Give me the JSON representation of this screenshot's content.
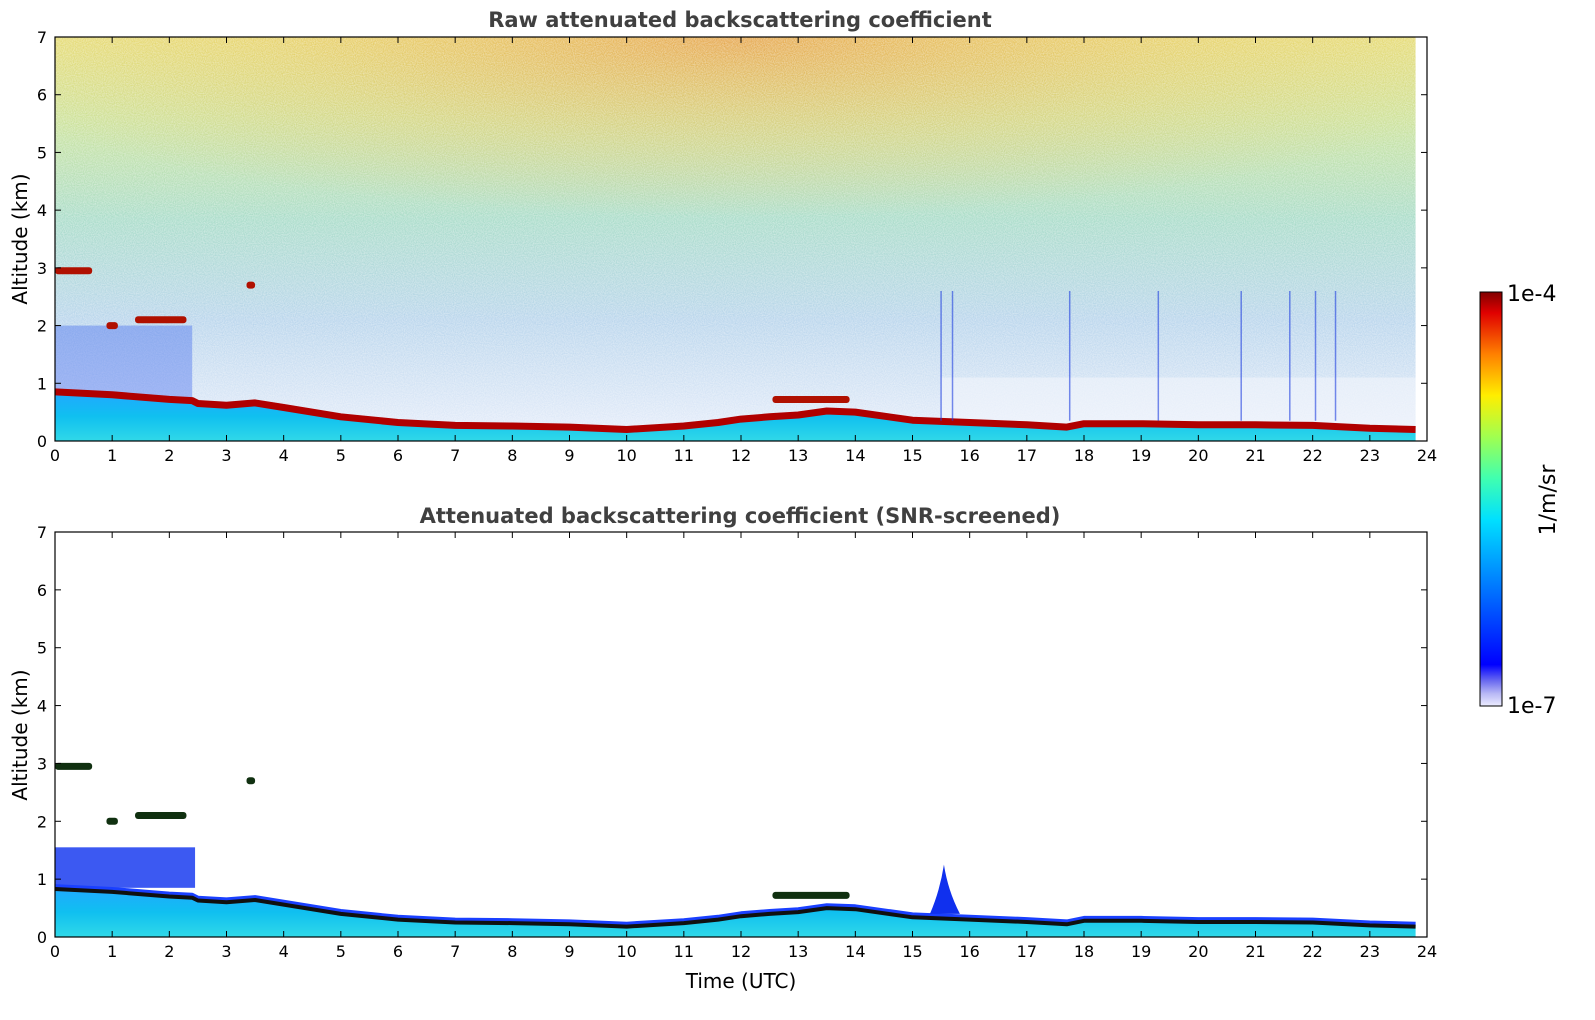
{
  "chart_data": [
    {
      "type": "heatmap",
      "title": "Raw attenuated backscattering coefficient",
      "xlabel": "",
      "ylabel": "Altitude (km)",
      "xlim": [
        0,
        24
      ],
      "ylim": [
        0,
        7
      ],
      "xticks": [
        "0",
        "1",
        "2",
        "3",
        "4",
        "5",
        "6",
        "7",
        "8",
        "9",
        "10",
        "11",
        "12",
        "13",
        "14",
        "15",
        "16",
        "17",
        "18",
        "19",
        "20",
        "21",
        "22",
        "23",
        "24"
      ],
      "yticks": [
        "0",
        "1",
        "2",
        "3",
        "4",
        "5",
        "6",
        "7"
      ],
      "data_end_time": 23.8,
      "boundary_layer_top_km": {
        "time": [
          0,
          1,
          2,
          2.4,
          2.5,
          3,
          3.5,
          4,
          5,
          6,
          7,
          8,
          9,
          10,
          11,
          11.6,
          12,
          12.5,
          13,
          13.5,
          14,
          15,
          16,
          17,
          17.7,
          18,
          19,
          20,
          21,
          22,
          23,
          23.8
        ],
        "altitude": [
          0.85,
          0.8,
          0.72,
          0.7,
          0.65,
          0.62,
          0.66,
          0.58,
          0.42,
          0.32,
          0.27,
          0.26,
          0.24,
          0.2,
          0.26,
          0.32,
          0.38,
          0.42,
          0.45,
          0.52,
          0.5,
          0.36,
          0.32,
          0.28,
          0.24,
          0.3,
          0.3,
          0.28,
          0.28,
          0.27,
          0.22,
          0.2
        ]
      },
      "cloud_layers": [
        {
          "t_start": 0.0,
          "t_end": 0.65,
          "alt_km": 2.95
        },
        {
          "t_start": 0.9,
          "t_end": 1.1,
          "alt_km": 2.0
        },
        {
          "t_start": 1.4,
          "t_end": 2.3,
          "alt_km": 2.1
        },
        {
          "t_start": 3.35,
          "t_end": 3.5,
          "alt_km": 2.7
        },
        {
          "t_start": 12.55,
          "t_end": 13.9,
          "alt_km": 0.72
        }
      ],
      "colorbar": {
        "min": "1e-7",
        "max": "1e-4",
        "label": "1/m/sr",
        "scale": "log",
        "colormap": "jet"
      }
    },
    {
      "type": "heatmap",
      "title": "Attenuated backscattering coefficient (SNR-screened)",
      "xlabel": "Time (UTC)",
      "ylabel": "Altitude (km)",
      "xlim": [
        0,
        24
      ],
      "ylim": [
        0,
        7
      ],
      "xticks": [
        "0",
        "1",
        "2",
        "3",
        "4",
        "5",
        "6",
        "7",
        "8",
        "9",
        "10",
        "11",
        "12",
        "13",
        "14",
        "15",
        "16",
        "17",
        "18",
        "19",
        "20",
        "21",
        "22",
        "23",
        "24"
      ],
      "yticks": [
        "0",
        "1",
        "2",
        "3",
        "4",
        "5",
        "6",
        "7"
      ],
      "aerosol_layer_km": {
        "t_start": 0,
        "t_end": 2.45,
        "top": 1.55
      },
      "plume": {
        "time": 15.55,
        "top_km": 1.25
      }
    }
  ],
  "colorbar": {
    "top_label": "1e-4",
    "bottom_label": "1e-7",
    "unit_label": "1/m/sr"
  }
}
